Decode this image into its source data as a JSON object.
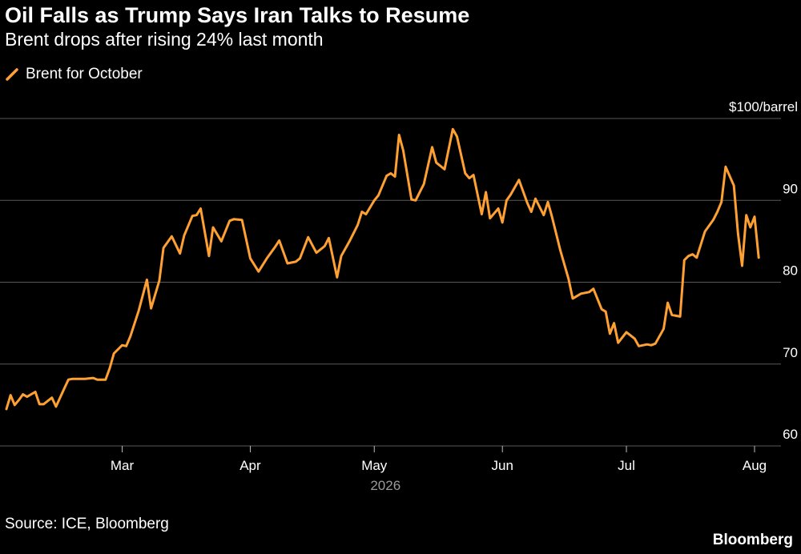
{
  "header": {
    "title": "Oil Falls as Trump Says Iran Talks to Resume",
    "subtitle": "Brent drops after rising 24% last month"
  },
  "footer": {
    "source": "Source: ICE, Bloomberg",
    "brand": "Bloomberg"
  },
  "colors": {
    "background": "#000000",
    "series": "#FFA033",
    "grid": "#5a5a5a",
    "text": "#ffffff",
    "muted": "#9a9a9a"
  },
  "chart_data": {
    "type": "line",
    "title": "Oil Falls as Trump Says Iran Talks to Resume",
    "subtitle": "Brent drops after rising 24% last month",
    "legend": {
      "position": "top-left",
      "entries": [
        "Brent for October"
      ]
    },
    "y_axis": {
      "side": "right",
      "range": [
        60,
        100
      ],
      "ticks": [
        60,
        70,
        80,
        90,
        100
      ],
      "tick_labels": [
        "60",
        "70",
        "80",
        "90",
        "$100/barrel"
      ],
      "grid": true
    },
    "x_axis": {
      "tick_labels": [
        "Mar",
        "Apr",
        "May",
        "Jun",
        "Jul",
        "Aug"
      ],
      "tick_dates": [
        "2026-03-01",
        "2026-04-01",
        "2026-05-01",
        "2026-06-01",
        "2026-07-01",
        "2026-08-01"
      ],
      "range": [
        "2026-02-01",
        "2026-08-01"
      ],
      "year_label": "2026"
    },
    "series": [
      {
        "name": "Brent for October",
        "color": "#FFA033",
        "points": [
          [
            "2026-02-01",
            64.5
          ],
          [
            "2026-02-02",
            66.2
          ],
          [
            "2026-02-03",
            65.0
          ],
          [
            "2026-02-04",
            65.6
          ],
          [
            "2026-02-05",
            66.3
          ],
          [
            "2026-02-06",
            66.0
          ],
          [
            "2026-02-08",
            66.6
          ],
          [
            "2026-02-09",
            65.1
          ],
          [
            "2026-02-10",
            65.1
          ],
          [
            "2026-02-12",
            65.9
          ],
          [
            "2026-02-13",
            64.8
          ],
          [
            "2026-02-15",
            67.0
          ],
          [
            "2026-02-16",
            68.1
          ],
          [
            "2026-02-17",
            68.2
          ],
          [
            "2026-02-20",
            68.2
          ],
          [
            "2026-02-22",
            68.3
          ],
          [
            "2026-02-23",
            68.1
          ],
          [
            "2026-02-25",
            68.1
          ],
          [
            "2026-02-26",
            69.5
          ],
          [
            "2026-02-27",
            71.3
          ],
          [
            "2026-03-01",
            72.3
          ],
          [
            "2026-03-02",
            72.2
          ],
          [
            "2026-03-03",
            73.4
          ],
          [
            "2026-03-05",
            76.5
          ],
          [
            "2026-03-07",
            80.3
          ],
          [
            "2026-03-08",
            76.8
          ],
          [
            "2026-03-10",
            80.2
          ],
          [
            "2026-03-11",
            84.2
          ],
          [
            "2026-03-13",
            85.6
          ],
          [
            "2026-03-15",
            83.5
          ],
          [
            "2026-03-16",
            85.7
          ],
          [
            "2026-03-18",
            88.1
          ],
          [
            "2026-03-19",
            88.2
          ],
          [
            "2026-03-20",
            89.0
          ],
          [
            "2026-03-22",
            83.2
          ],
          [
            "2026-03-23",
            86.7
          ],
          [
            "2026-03-25",
            85.0
          ],
          [
            "2026-03-27",
            87.5
          ],
          [
            "2026-03-28",
            87.7
          ],
          [
            "2026-03-30",
            87.6
          ],
          [
            "2026-04-01",
            82.9
          ],
          [
            "2026-04-03",
            81.3
          ],
          [
            "2026-04-05",
            82.9
          ],
          [
            "2026-04-07",
            84.3
          ],
          [
            "2026-04-08",
            85.1
          ],
          [
            "2026-04-10",
            82.3
          ],
          [
            "2026-04-12",
            82.5
          ],
          [
            "2026-04-13",
            82.9
          ],
          [
            "2026-04-15",
            85.5
          ],
          [
            "2026-04-17",
            83.6
          ],
          [
            "2026-04-19",
            84.4
          ],
          [
            "2026-04-20",
            85.4
          ],
          [
            "2026-04-22",
            80.6
          ],
          [
            "2026-04-23",
            83.2
          ],
          [
            "2026-04-25",
            85.0
          ],
          [
            "2026-04-27",
            87.0
          ],
          [
            "2026-04-28",
            88.6
          ],
          [
            "2026-04-29",
            88.3
          ],
          [
            "2026-05-01",
            90.0
          ],
          [
            "2026-05-02",
            90.6
          ],
          [
            "2026-05-04",
            93.0
          ],
          [
            "2026-05-05",
            93.3
          ],
          [
            "2026-05-06",
            92.9
          ],
          [
            "2026-05-07",
            98.0
          ],
          [
            "2026-05-08",
            96.1
          ],
          [
            "2026-05-10",
            90.1
          ],
          [
            "2026-05-11",
            90.0
          ],
          [
            "2026-05-13",
            92.0
          ],
          [
            "2026-05-15",
            96.5
          ],
          [
            "2026-05-16",
            94.6
          ],
          [
            "2026-05-18",
            93.8
          ],
          [
            "2026-05-20",
            98.7
          ],
          [
            "2026-05-21",
            97.8
          ],
          [
            "2026-05-23",
            93.3
          ],
          [
            "2026-05-24",
            92.7
          ],
          [
            "2026-05-25",
            93.1
          ],
          [
            "2026-05-27",
            88.3
          ],
          [
            "2026-05-28",
            91.0
          ],
          [
            "2026-05-29",
            87.8
          ],
          [
            "2026-05-31",
            89.0
          ],
          [
            "2026-06-01",
            87.3
          ],
          [
            "2026-06-02",
            90.0
          ],
          [
            "2026-06-03",
            90.7
          ],
          [
            "2026-06-05",
            92.5
          ],
          [
            "2026-06-07",
            89.7
          ],
          [
            "2026-06-08",
            88.6
          ],
          [
            "2026-06-09",
            90.2
          ],
          [
            "2026-06-11",
            88.2
          ],
          [
            "2026-06-12",
            89.8
          ],
          [
            "2026-06-13",
            88.0
          ],
          [
            "2026-06-15",
            83.9
          ],
          [
            "2026-06-17",
            80.4
          ],
          [
            "2026-06-18",
            78.0
          ],
          [
            "2026-06-20",
            78.6
          ],
          [
            "2026-06-22",
            78.8
          ],
          [
            "2026-06-23",
            79.2
          ],
          [
            "2026-06-25",
            76.7
          ],
          [
            "2026-06-26",
            76.4
          ],
          [
            "2026-06-27",
            73.7
          ],
          [
            "2026-06-28",
            75.0
          ],
          [
            "2026-06-29",
            72.6
          ],
          [
            "2026-07-01",
            73.9
          ],
          [
            "2026-07-03",
            73.1
          ],
          [
            "2026-07-04",
            72.2
          ],
          [
            "2026-07-06",
            72.4
          ],
          [
            "2026-07-07",
            72.3
          ],
          [
            "2026-07-08",
            72.5
          ],
          [
            "2026-07-10",
            74.3
          ],
          [
            "2026-07-11",
            77.5
          ],
          [
            "2026-07-12",
            76.0
          ],
          [
            "2026-07-14",
            75.8
          ],
          [
            "2026-07-15",
            82.7
          ],
          [
            "2026-07-16",
            83.2
          ],
          [
            "2026-07-17",
            83.4
          ],
          [
            "2026-07-18",
            83.0
          ],
          [
            "2026-07-20",
            86.2
          ],
          [
            "2026-07-22",
            87.6
          ],
          [
            "2026-07-23",
            88.6
          ],
          [
            "2026-07-24",
            89.8
          ],
          [
            "2026-07-25",
            94.1
          ],
          [
            "2026-07-27",
            91.8
          ],
          [
            "2026-07-28",
            85.9
          ],
          [
            "2026-07-29",
            82.0
          ],
          [
            "2026-07-30",
            88.2
          ],
          [
            "2026-07-31",
            86.7
          ],
          [
            "2026-08-01",
            88.0
          ],
          [
            "2026-08-02",
            83.0
          ]
        ]
      }
    ]
  }
}
